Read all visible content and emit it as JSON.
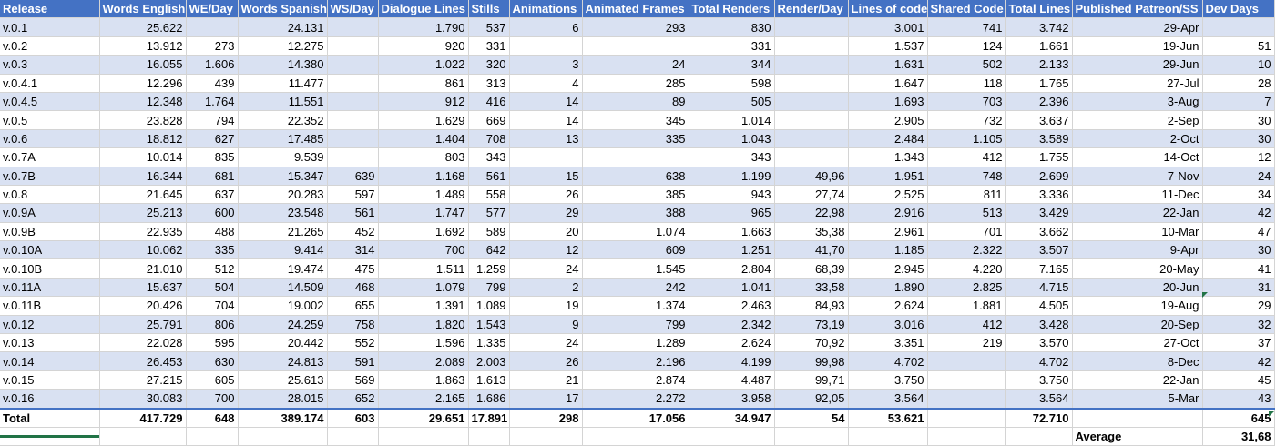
{
  "columns": [
    "Release",
    "Words English",
    "WE/Day",
    "Words Spanish",
    "WS/Day",
    "Dialogue Lines",
    "Stills",
    "Animations",
    "Animated Frames",
    "Total Renders",
    "Render/Day",
    "Lines of code",
    "Shared Code",
    "Total Lines",
    "Published Patreon/SS",
    "Dev Days"
  ],
  "rows": [
    [
      "v.0.1",
      "25.622",
      "",
      "24.131",
      "",
      "1.790",
      "537",
      "6",
      "293",
      "830",
      "",
      "3.001",
      "741",
      "3.742",
      "29-Apr",
      ""
    ],
    [
      "v.0.2",
      "13.912",
      "273",
      "12.275",
      "",
      "920",
      "331",
      "",
      "",
      "331",
      "",
      "1.537",
      "124",
      "1.661",
      "19-Jun",
      "51"
    ],
    [
      "v.0.3",
      "16.055",
      "1.606",
      "14.380",
      "",
      "1.022",
      "320",
      "3",
      "24",
      "344",
      "",
      "1.631",
      "502",
      "2.133",
      "29-Jun",
      "10"
    ],
    [
      "v.0.4.1",
      "12.296",
      "439",
      "11.477",
      "",
      "861",
      "313",
      "4",
      "285",
      "598",
      "",
      "1.647",
      "118",
      "1.765",
      "27-Jul",
      "28"
    ],
    [
      "v.0.4.5",
      "12.348",
      "1.764",
      "11.551",
      "",
      "912",
      "416",
      "14",
      "89",
      "505",
      "",
      "1.693",
      "703",
      "2.396",
      "3-Aug",
      "7"
    ],
    [
      "v.0.5",
      "23.828",
      "794",
      "22.352",
      "",
      "1.629",
      "669",
      "14",
      "345",
      "1.014",
      "",
      "2.905",
      "732",
      "3.637",
      "2-Sep",
      "30"
    ],
    [
      "v.0.6",
      "18.812",
      "627",
      "17.485",
      "",
      "1.404",
      "708",
      "13",
      "335",
      "1.043",
      "",
      "2.484",
      "1.105",
      "3.589",
      "2-Oct",
      "30"
    ],
    [
      "v.0.7A",
      "10.014",
      "835",
      "9.539",
      "",
      "803",
      "343",
      "",
      "",
      "343",
      "",
      "1.343",
      "412",
      "1.755",
      "14-Oct",
      "12"
    ],
    [
      "v.0.7B",
      "16.344",
      "681",
      "15.347",
      "639",
      "1.168",
      "561",
      "15",
      "638",
      "1.199",
      "49,96",
      "1.951",
      "748",
      "2.699",
      "7-Nov",
      "24"
    ],
    [
      "v.0.8",
      "21.645",
      "637",
      "20.283",
      "597",
      "1.489",
      "558",
      "26",
      "385",
      "943",
      "27,74",
      "2.525",
      "811",
      "3.336",
      "11-Dec",
      "34"
    ],
    [
      "v.0.9A",
      "25.213",
      "600",
      "23.548",
      "561",
      "1.747",
      "577",
      "29",
      "388",
      "965",
      "22,98",
      "2.916",
      "513",
      "3.429",
      "22-Jan",
      "42"
    ],
    [
      "v.0.9B",
      "22.935",
      "488",
      "21.265",
      "452",
      "1.692",
      "589",
      "20",
      "1.074",
      "1.663",
      "35,38",
      "2.961",
      "701",
      "3.662",
      "10-Mar",
      "47"
    ],
    [
      "v.0.10A",
      "10.062",
      "335",
      "9.414",
      "314",
      "700",
      "642",
      "12",
      "609",
      "1.251",
      "41,70",
      "1.185",
      "2.322",
      "3.507",
      "9-Apr",
      "30"
    ],
    [
      "v.0.10B",
      "21.010",
      "512",
      "19.474",
      "475",
      "1.511",
      "1.259",
      "24",
      "1.545",
      "2.804",
      "68,39",
      "2.945",
      "4.220",
      "7.165",
      "20-May",
      "41"
    ],
    [
      "v.0.11A",
      "15.637",
      "504",
      "14.509",
      "468",
      "1.079",
      "799",
      "2",
      "242",
      "1.041",
      "33,58",
      "1.890",
      "2.825",
      "4.715",
      "20-Jun",
      "31"
    ],
    [
      "v.0.11B",
      "20.426",
      "704",
      "19.002",
      "655",
      "1.391",
      "1.089",
      "19",
      "1.374",
      "2.463",
      "84,93",
      "2.624",
      "1.881",
      "4.505",
      "19-Aug",
      "29"
    ],
    [
      "v.0.12",
      "25.791",
      "806",
      "24.259",
      "758",
      "1.820",
      "1.543",
      "9",
      "799",
      "2.342",
      "73,19",
      "3.016",
      "412",
      "3.428",
      "20-Sep",
      "32"
    ],
    [
      "v.0.13",
      "22.028",
      "595",
      "20.442",
      "552",
      "1.596",
      "1.335",
      "24",
      "1.289",
      "2.624",
      "70,92",
      "3.351",
      "219",
      "3.570",
      "27-Oct",
      "37"
    ],
    [
      "v.0.14",
      "26.453",
      "630",
      "24.813",
      "591",
      "2.089",
      "2.003",
      "26",
      "2.196",
      "4.199",
      "99,98",
      "4.702",
      "",
      "4.702",
      "8-Dec",
      "42"
    ],
    [
      "v.0.15",
      "27.215",
      "605",
      "25.613",
      "569",
      "1.863",
      "1.613",
      "21",
      "2.874",
      "4.487",
      "99,71",
      "3.750",
      "",
      "3.750",
      "22-Jan",
      "45"
    ],
    [
      "v.0.16",
      "30.083",
      "700",
      "28.015",
      "652",
      "2.165",
      "1.686",
      "17",
      "2.272",
      "3.958",
      "92,05",
      "3.564",
      "",
      "3.564",
      "5-Mar",
      "43"
    ]
  ],
  "total": [
    "Total",
    "417.729",
    "648",
    "389.174",
    "603",
    "29.651",
    "17.891",
    "298",
    "17.056",
    "34.947",
    "54",
    "53.621",
    "",
    "72.710",
    "",
    "645"
  ],
  "average": {
    "label": "Average",
    "value": "31,68"
  }
}
